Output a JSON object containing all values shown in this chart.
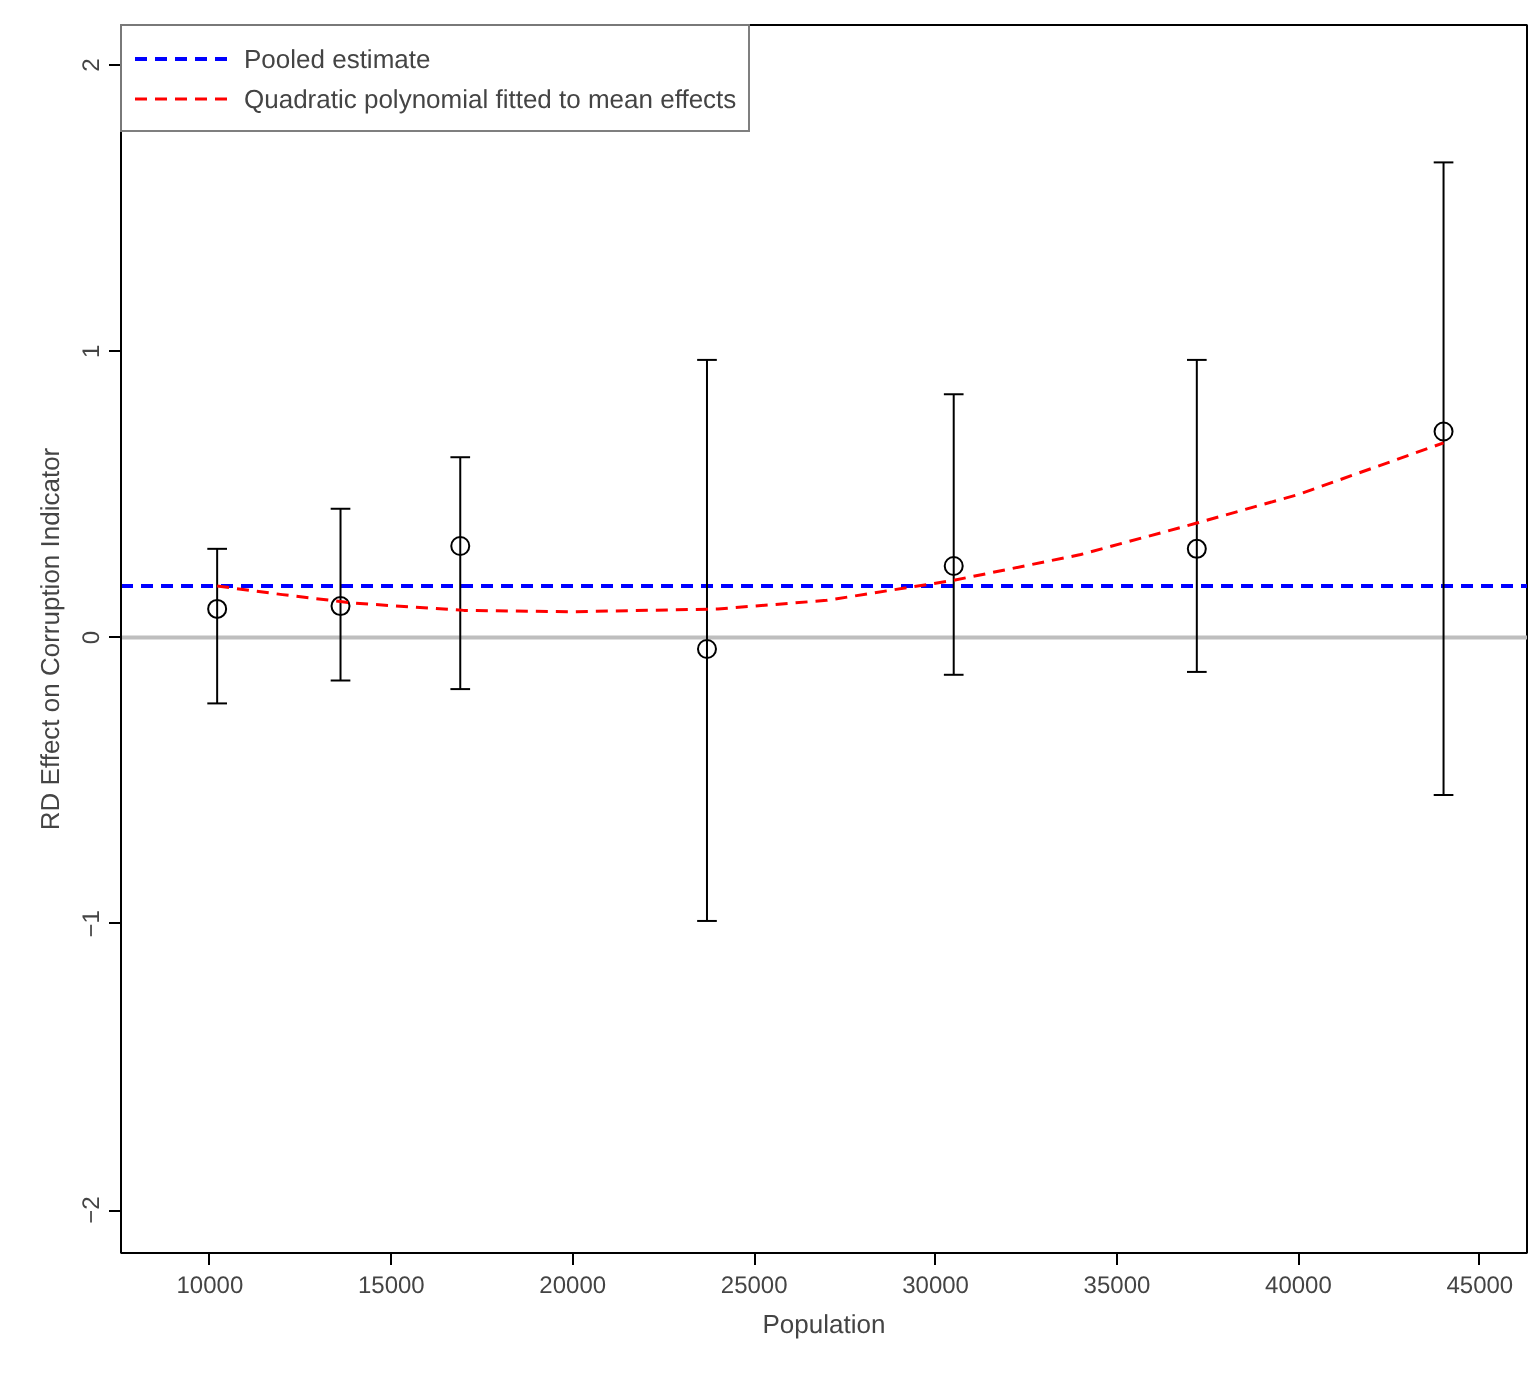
{
  "chart_data": {
    "type": "scatter",
    "xlabel": "Population",
    "ylabel": "RD Effect on Corruption Indicator",
    "x": [
      10200,
      13600,
      16900,
      23700,
      30500,
      37200,
      44000
    ],
    "xlim": [
      7550,
      46300
    ],
    "ylim": [
      -2.15,
      2.14
    ],
    "xticks": [
      10000,
      15000,
      20000,
      25000,
      30000,
      35000,
      40000,
      45000
    ],
    "yticks": [
      {
        "value": -2,
        "label": "−2"
      },
      {
        "value": -1,
        "label": "−1"
      },
      0,
      1,
      2
    ],
    "series": [
      {
        "color": "#000000",
        "marker": "circle",
        "values": [
          0.1,
          0.11,
          0.32,
          -0.04,
          0.25,
          0.31,
          0.72
        ],
        "errors": [
          [
            -0.23,
            0.31
          ],
          [
            -0.15,
            0.45
          ],
          [
            -0.18,
            0.63
          ],
          [
            -0.99,
            0.97
          ],
          [
            -0.13,
            0.85
          ],
          [
            -0.12,
            0.97
          ],
          [
            -0.55,
            1.66
          ]
        ]
      },
      {
        "type": "line",
        "name": "Quadratic polynomial fitted to mean effects",
        "color": "#ff0000",
        "line_style": "dashed",
        "x": [
          10200,
          12000,
          14000,
          17000,
          20000,
          24000,
          27000,
          30500,
          34000,
          37200,
          40000,
          44000
        ],
        "values": [
          0.18,
          0.15,
          0.12,
          0.095,
          0.09,
          0.1,
          0.13,
          0.2,
          0.29,
          0.4,
          0.5,
          0.68
        ]
      }
    ],
    "ref_lines": [
      {
        "axis": "y",
        "value": 0,
        "color": "#bebebe",
        "line_style": "solid"
      },
      {
        "axis": "y",
        "value": 0.18,
        "label": "Pooled estimate",
        "color": "#0000ff",
        "line_style": "dashed"
      }
    ],
    "legend": "top left",
    "grid": false
  }
}
